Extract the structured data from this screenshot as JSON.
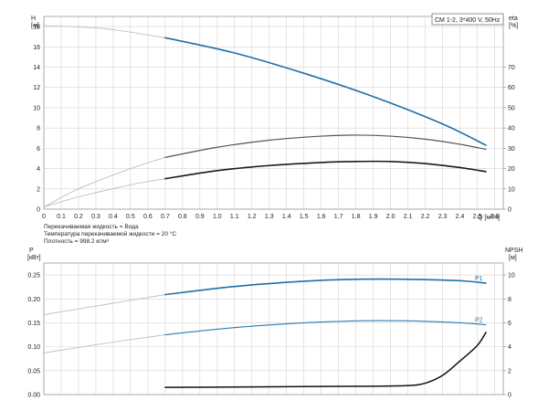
{
  "chart_data": [
    {
      "type": "line",
      "legend": "CM 1-2, 3*400 V, 50Hz",
      "y_left_label_line1": "H",
      "y_left_label_line2": "[м]",
      "y_right_label_line1": "eta",
      "y_right_label_line2": "[%]",
      "x_label": "Q [м³/ч]",
      "xlim": [
        0,
        2.65
      ],
      "ylim_left": [
        0,
        19
      ],
      "ylim_right": [
        0,
        95
      ],
      "x_ticks": [
        "0",
        "0.1",
        "0.2",
        "0.3",
        "0.4",
        "0.5",
        "0.6",
        "0.7",
        "0.8",
        "0.9",
        "1.0",
        "1.1",
        "1.2",
        "1.3",
        "1.4",
        "1.5",
        "1.6",
        "1.7",
        "1.8",
        "1.9",
        "2.0",
        "2.1",
        "2.2",
        "2.3",
        "2.4",
        "2.5",
        "2.6"
      ],
      "y_left_ticks": [
        "0",
        "2",
        "4",
        "6",
        "8",
        "10",
        "12",
        "14",
        "16",
        "18"
      ],
      "y_right_ticks": [
        "0",
        "10",
        "20",
        "30",
        "40",
        "50",
        "60",
        "70"
      ],
      "notes": [
        "Перекачиваемая жидкость = Вода",
        "Температура перекачиваемой жидкости = 20 °C",
        "Плотность = 998.2 кг/м³"
      ],
      "series": [
        {
          "axis": "left",
          "color": "#1f6fa8",
          "width": 1.6,
          "x": [
            0,
            0.35,
            0.7,
            1.1,
            1.5,
            1.9,
            2.3,
            2.55
          ],
          "y": [
            18.1,
            17.8,
            16.9,
            15.4,
            13.4,
            11.1,
            8.4,
            6.3
          ],
          "operating_from": 0.7
        },
        {
          "axis": "left",
          "color": "#555555",
          "width": 1.2,
          "x": [
            0,
            0.2,
            0.5,
            0.7,
            1.0,
            1.3,
            1.6,
            1.8,
            2.0,
            2.2,
            2.4,
            2.55
          ],
          "y": [
            0.2,
            2.0,
            4.0,
            5.1,
            6.1,
            6.8,
            7.2,
            7.3,
            7.2,
            6.9,
            6.4,
            5.9
          ],
          "operating_from": 0.7
        },
        {
          "axis": "left",
          "color": "#1a1a1a",
          "width": 1.6,
          "x": [
            0,
            0.2,
            0.5,
            0.7,
            1.0,
            1.3,
            1.6,
            1.8,
            2.0,
            2.2,
            2.4,
            2.55
          ],
          "y": [
            0.2,
            1.2,
            2.4,
            3.0,
            3.8,
            4.3,
            4.6,
            4.7,
            4.7,
            4.5,
            4.1,
            3.7
          ],
          "operating_from": 0.7
        }
      ]
    },
    {
      "type": "line",
      "y_left_label_line1": "P",
      "y_left_label_line2": "[кВт]",
      "y_right_label_line1": "NPSH",
      "y_right_label_line2": "[м]",
      "xlim": [
        0,
        2.65
      ],
      "ylim_left": [
        0,
        0.275
      ],
      "ylim_right": [
        0,
        11
      ],
      "y_left_ticks": [
        "0.00",
        "0.05",
        "0.10",
        "0.15",
        "0.20",
        "0.25"
      ],
      "y_right_ticks": [
        "0",
        "2",
        "4",
        "6",
        "8",
        "10"
      ],
      "series": [
        {
          "name": "P1",
          "axis": "left",
          "color": "#1f6fa8",
          "width": 1.6,
          "x": [
            0,
            0.35,
            0.7,
            1.1,
            1.5,
            1.8,
            2.1,
            2.4,
            2.55
          ],
          "y": [
            0.167,
            0.188,
            0.209,
            0.226,
            0.237,
            0.241,
            0.241,
            0.238,
            0.233
          ],
          "operating_from": 0.7
        },
        {
          "name": "P2",
          "axis": "left",
          "color": "#2b7bb5",
          "width": 1.1,
          "x": [
            0,
            0.35,
            0.7,
            1.1,
            1.5,
            1.8,
            2.1,
            2.4,
            2.55
          ],
          "y": [
            0.087,
            0.107,
            0.125,
            0.14,
            0.15,
            0.154,
            0.154,
            0.15,
            0.146
          ],
          "operating_from": 0.7
        },
        {
          "axis": "right",
          "color": "#111111",
          "width": 1.5,
          "x": [
            0.7,
            1.0,
            1.3,
            1.6,
            1.9,
            2.1,
            2.2,
            2.3,
            2.4,
            2.5,
            2.55
          ],
          "y": [
            0.6,
            0.62,
            0.65,
            0.68,
            0.7,
            0.75,
            0.95,
            1.6,
            2.8,
            4.1,
            5.2
          ],
          "operating_from": 0.7
        }
      ]
    }
  ]
}
